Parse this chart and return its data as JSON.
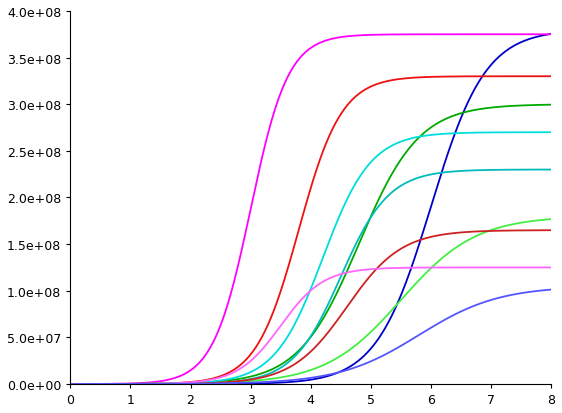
{
  "curves": [
    {
      "K": 380000000.0,
      "r": 2.2,
      "t0": 6.0,
      "color": "#0000cc",
      "lw": 1.3
    },
    {
      "K": 375000000.0,
      "r": 3.2,
      "t0": 3.0,
      "color": "#ff00ff",
      "lw": 1.3
    },
    {
      "K": 330000000.0,
      "r": 2.8,
      "t0": 3.8,
      "color": "#ee1111",
      "lw": 1.3
    },
    {
      "K": 300000000.0,
      "r": 2.0,
      "t0": 4.8,
      "color": "#00aa00",
      "lw": 1.3
    },
    {
      "K": 270000000.0,
      "r": 2.5,
      "t0": 4.2,
      "color": "#00dddd",
      "lw": 1.3
    },
    {
      "K": 230000000.0,
      "r": 2.5,
      "t0": 4.5,
      "color": "#00bbbb",
      "lw": 1.3
    },
    {
      "K": 180000000.0,
      "r": 1.6,
      "t0": 5.5,
      "color": "#44ee44",
      "lw": 1.3
    },
    {
      "K": 165000000.0,
      "r": 2.2,
      "t0": 4.6,
      "color": "#cc2222",
      "lw": 1.3
    },
    {
      "K": 125000000.0,
      "r": 2.8,
      "t0": 3.5,
      "color": "#ff66ff",
      "lw": 1.3
    },
    {
      "K": 105000000.0,
      "r": 1.5,
      "t0": 5.8,
      "color": "#5555ff",
      "lw": 1.3
    }
  ],
  "t_start": 0,
  "t_end": 8,
  "n_points": 800,
  "xlim": [
    0,
    8
  ],
  "ylim": [
    0,
    400000000.0
  ],
  "xticks": [
    0,
    1,
    2,
    3,
    4,
    5,
    6,
    7,
    8
  ],
  "ytick_values": [
    0,
    50000000.0,
    100000000.0,
    150000000.0,
    200000000.0,
    250000000.0,
    300000000.0,
    350000000.0,
    400000000.0
  ],
  "bg_color": "#ffffff",
  "figsize": [
    5.62,
    4.14
  ],
  "dpi": 100
}
